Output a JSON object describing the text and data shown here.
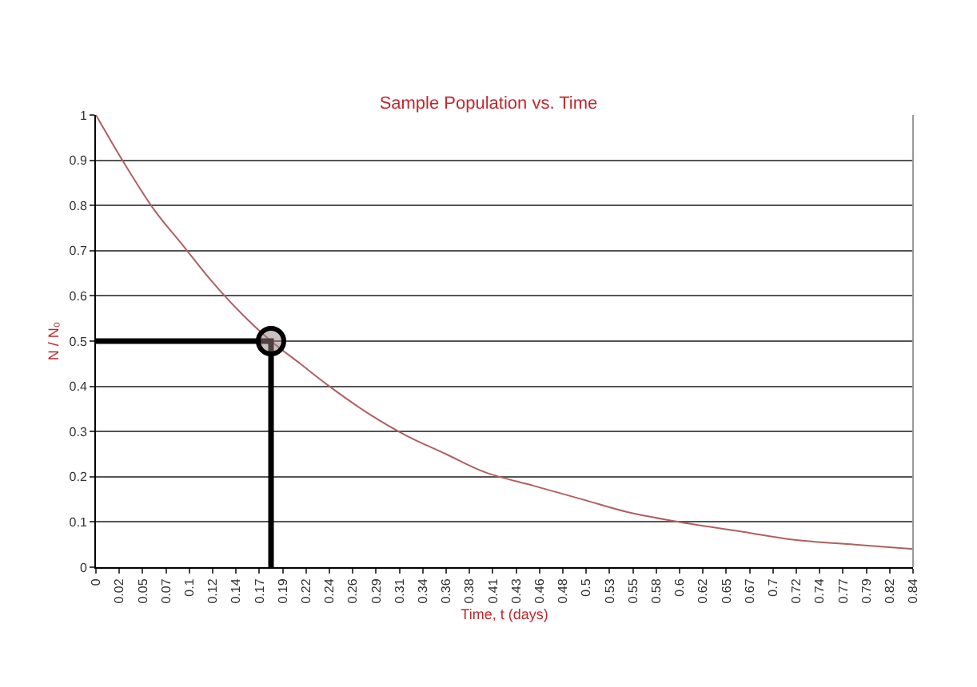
{
  "chart_data": {
    "type": "line",
    "title": "Sample Population vs. Time",
    "xlabel": "Time, t (days)",
    "ylabel": "N / N₀",
    "xlim": [
      0,
      0.84
    ],
    "ylim": [
      0,
      1
    ],
    "xticks": [
      0,
      {
        "value": 0.024,
        "label": "0.02"
      },
      {
        "value": 0.048,
        "label": "0.05"
      },
      {
        "value": 0.072,
        "label": "0.07"
      },
      {
        "value": 0.096,
        "label": "0.1"
      },
      {
        "value": 0.12,
        "label": "0.12"
      },
      {
        "value": 0.144,
        "label": "0.14"
      },
      {
        "value": 0.168,
        "label": "0.17"
      },
      {
        "value": 0.192,
        "label": "0.19"
      },
      {
        "value": 0.216,
        "label": "0.22"
      },
      {
        "value": 0.24,
        "label": "0.24"
      },
      {
        "value": 0.264,
        "label": "0.26"
      },
      {
        "value": 0.288,
        "label": "0.29"
      },
      {
        "value": 0.312,
        "label": "0.31"
      },
      {
        "value": 0.336,
        "label": "0.34"
      },
      {
        "value": 0.36,
        "label": "0.36"
      },
      {
        "value": 0.384,
        "label": "0.38"
      },
      {
        "value": 0.408,
        "label": "0.41"
      },
      {
        "value": 0.432,
        "label": "0.43"
      },
      {
        "value": 0.456,
        "label": "0.46"
      },
      {
        "value": 0.48,
        "label": "0.48"
      },
      {
        "value": 0.504,
        "label": "0.5"
      },
      {
        "value": 0.528,
        "label": "0.53"
      },
      {
        "value": 0.552,
        "label": "0.55"
      },
      {
        "value": 0.576,
        "label": "0.58"
      },
      {
        "value": 0.6,
        "label": "0.6"
      },
      {
        "value": 0.624,
        "label": "0.62"
      },
      {
        "value": 0.648,
        "label": "0.65"
      },
      {
        "value": 0.672,
        "label": "0.67"
      },
      {
        "value": 0.696,
        "label": "0.7"
      },
      {
        "value": 0.72,
        "label": "0.72"
      },
      {
        "value": 0.744,
        "label": "0.74"
      },
      {
        "value": 0.768,
        "label": "0.77"
      },
      {
        "value": 0.792,
        "label": "0.79"
      },
      {
        "value": 0.816,
        "label": "0.82"
      },
      {
        "value": 0.84,
        "label": "0.84"
      }
    ],
    "yticks": [
      0,
      0.1,
      0.2,
      0.3,
      0.4,
      0.5,
      0.6,
      0.7,
      0.8,
      0.9,
      1
    ],
    "grid": "y",
    "marker": "none",
    "line_style": "solid",
    "series": [
      {
        "color": "#b06060",
        "x": [
          0,
          0.03,
          0.06,
          0.09,
          0.12,
          0.15,
          0.18,
          0.21,
          0.24,
          0.28,
          0.32,
          0.36,
          0.4,
          0.45,
          0.5,
          0.55,
          0.6,
          0.66,
          0.72,
          0.78,
          0.84
        ],
        "values": [
          1,
          0.89,
          0.79,
          0.71,
          0.63,
          0.56,
          0.5,
          0.45,
          0.4,
          0.34,
          0.29,
          0.25,
          0.21,
          0.18,
          0.15,
          0.12,
          0.1,
          0.08,
          0.06,
          0.05,
          0.04
        ]
      },
      {
        "type": "line",
        "color": "#000000",
        "x": [
          0,
          0.18,
          0.18
        ],
        "values": [
          0.5,
          0.5,
          0
        ]
      },
      {
        "type": "scatter",
        "color": "#000000",
        "marker": "circle",
        "x": [
          0.18
        ],
        "values": [
          0.5
        ]
      }
    ]
  }
}
